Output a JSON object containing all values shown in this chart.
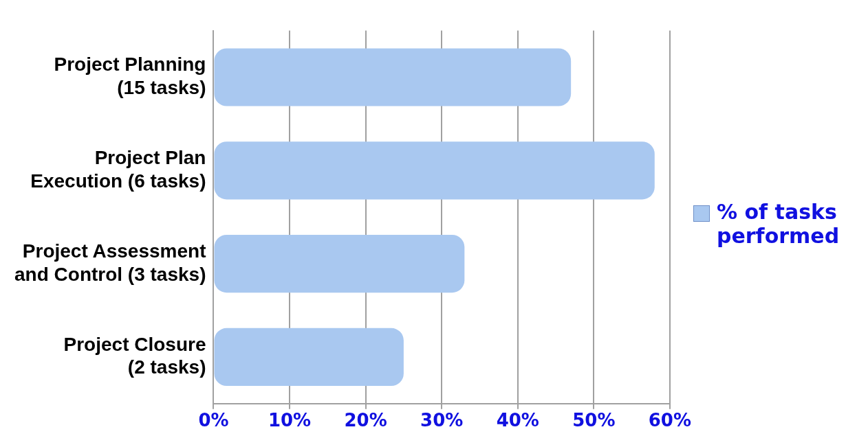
{
  "chart_data": {
    "type": "bar",
    "orientation": "horizontal",
    "categories": [
      "Project Planning (15 tasks)",
      "Project Plan Execution (6 tasks)",
      "Project Assessment and Control (3 tasks)",
      "Project Closure (2 tasks)"
    ],
    "series": [
      {
        "name": "% of tasks performed",
        "color": "#a9c8f0",
        "values": [
          47,
          58,
          33,
          25
        ]
      }
    ],
    "xlim": [
      0,
      60
    ],
    "xticks": [
      {
        "value": 0,
        "label": "0%"
      },
      {
        "value": 10,
        "label": "10%"
      },
      {
        "value": 20,
        "label": "20%"
      },
      {
        "value": 30,
        "label": "30%"
      },
      {
        "value": 40,
        "label": "40%"
      },
      {
        "value": 50,
        "label": "50%"
      },
      {
        "value": 60,
        "label": "60%"
      }
    ],
    "grid": "x",
    "legend": "right"
  }
}
